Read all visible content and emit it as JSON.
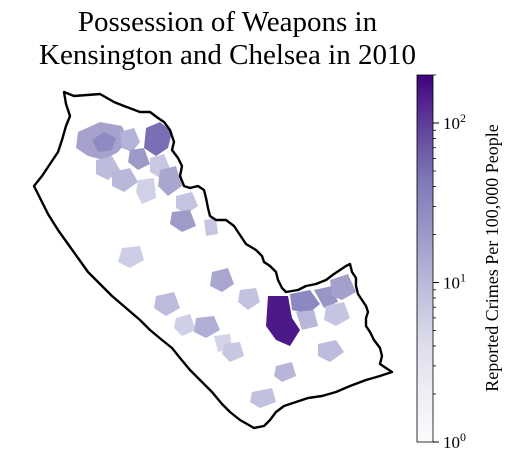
{
  "title_line1": "Possession of Weapons in",
  "title_line2": "Kensington and Chelsea in 2010",
  "colorbar": {
    "label": "Reported Crimes Per 100,000 People",
    "scale": "log",
    "range": [
      1,
      200
    ],
    "ticks": [
      {
        "value": 1,
        "base": "10",
        "exp": "0"
      },
      {
        "value": 10,
        "base": "10",
        "exp": "1"
      },
      {
        "value": 100,
        "base": "10",
        "exp": "2"
      }
    ],
    "colors": [
      "#fcfbfd",
      "#efedf5",
      "#dadaeb",
      "#bcbddc",
      "#9e9ac8",
      "#807dba",
      "#6a51a3",
      "#54278f",
      "#3f007d"
    ]
  }
}
